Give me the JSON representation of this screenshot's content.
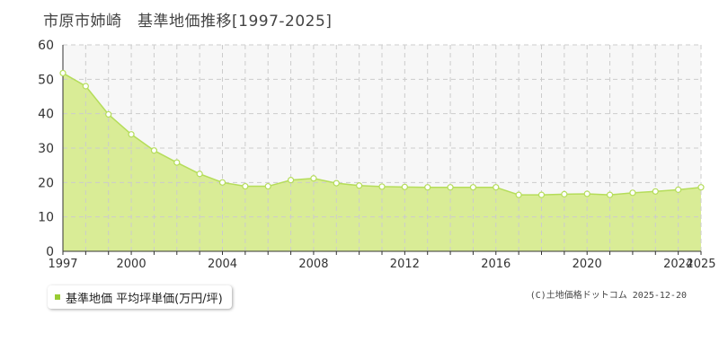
{
  "title": "市原市姉崎　基準地価推移[1997-2025]",
  "legend_label": "基準地価 平均坪単価(万円/坪)",
  "credit": "(C)土地価格ドットコム 2025-12-20",
  "colors": {
    "line": "#b5dd5a",
    "fill": "#d9ec96",
    "marker_fill": "#ffffff",
    "grid": "#cccccc",
    "bg_upper": "#f7f7f7"
  },
  "chart_data": {
    "type": "area",
    "title": "市原市姉崎　基準地価推移[1997-2025]",
    "xlabel": "",
    "ylabel": "",
    "x": [
      1997,
      1998,
      1999,
      2000,
      2001,
      2002,
      2003,
      2004,
      2005,
      2006,
      2007,
      2008,
      2009,
      2010,
      2011,
      2012,
      2013,
      2014,
      2015,
      2016,
      2017,
      2018,
      2019,
      2020,
      2021,
      2022,
      2023,
      2024,
      2025
    ],
    "series": [
      {
        "name": "基準地価 平均坪単価(万円/坪)",
        "values": [
          51.8,
          48.0,
          39.8,
          34.0,
          29.3,
          25.8,
          22.5,
          20.0,
          18.9,
          18.9,
          20.7,
          21.2,
          19.8,
          19.1,
          18.8,
          18.7,
          18.6,
          18.6,
          18.6,
          18.6,
          16.4,
          16.4,
          16.6,
          16.7,
          16.4,
          17.0,
          17.4,
          17.9,
          18.6
        ]
      }
    ],
    "xlim": [
      1997,
      2025
    ],
    "ylim": [
      0,
      60
    ],
    "yticks": [
      0,
      10,
      20,
      30,
      40,
      50,
      60
    ],
    "xtick_labels": [
      "1997",
      "2000",
      "2004",
      "2008",
      "2012",
      "2016",
      "2020",
      "2024",
      "2025"
    ],
    "grid": true,
    "legend": "bottom-left"
  }
}
